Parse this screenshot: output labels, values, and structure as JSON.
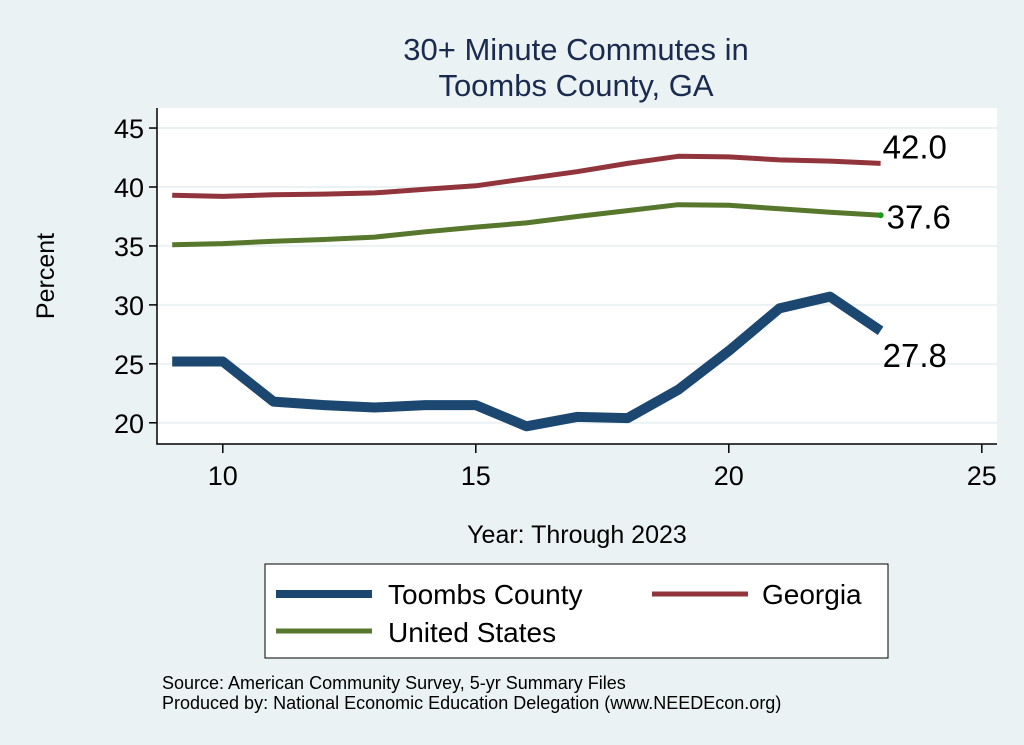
{
  "chart_data": {
    "type": "line",
    "title": [
      "30+ Minute Commutes in",
      "Toombs County, GA"
    ],
    "xlabel": "Year: Through 2023",
    "ylabel": "Percent",
    "xlim": [
      8.7,
      25.3
    ],
    "ylim": [
      18.2,
      46.7
    ],
    "xticks": [
      10,
      15,
      20,
      25
    ],
    "yticks": [
      20,
      25,
      30,
      35,
      40,
      45
    ],
    "grid": "horizontal",
    "x": [
      9,
      10,
      11,
      12,
      13,
      14,
      15,
      16,
      17,
      18,
      19,
      20,
      21,
      22,
      23
    ],
    "series": [
      {
        "name": "Toombs County",
        "color": "#1b4770",
        "values": [
          25.2,
          25.2,
          21.8,
          21.5,
          21.3,
          21.5,
          21.5,
          19.7,
          20.5,
          20.4,
          22.8,
          26.1,
          29.7,
          30.7,
          27.8
        ],
        "end_label": "27.8"
      },
      {
        "name": "Georgia",
        "color": "#92343b",
        "values": [
          39.3,
          39.2,
          39.35,
          39.4,
          39.5,
          39.8,
          40.1,
          40.7,
          41.3,
          42.0,
          42.6,
          42.55,
          42.3,
          42.2,
          42.0
        ],
        "end_label": "42.0"
      },
      {
        "name": "United States",
        "color": "#57772d",
        "values": [
          35.1,
          35.2,
          35.4,
          35.55,
          35.75,
          36.2,
          36.6,
          36.95,
          37.5,
          38.0,
          38.5,
          38.45,
          38.15,
          37.85,
          37.6
        ],
        "end_label": "37.6"
      }
    ],
    "legend": {
      "placement": "bottom",
      "entries": [
        "Toombs County",
        "Georgia",
        "United States"
      ]
    },
    "notes": [
      "Source: American Community Survey, 5-yr Summary Files",
      "Produced by: National Economic Education Delegation (www.NEEDEcon.org)"
    ]
  },
  "colors": {
    "background": "#eaf2f3",
    "plot_background": "#ffffff",
    "grid": "#eaf2f3",
    "title": "#1a2b4f",
    "us_end_marker": "#1a9a1a"
  }
}
